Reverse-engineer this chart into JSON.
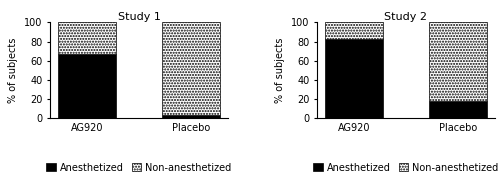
{
  "study1": {
    "title": "Study 1",
    "categories": [
      "AG920",
      "Placebo"
    ],
    "anesthetized": [
      67,
      3
    ],
    "non_anesthetized": [
      33,
      97
    ]
  },
  "study2": {
    "title": "Study 2",
    "categories": [
      "AG920",
      "Placebo"
    ],
    "anesthetized": [
      83,
      17
    ],
    "non_anesthetized": [
      17,
      83
    ]
  },
  "ylabel": "% of subjects",
  "ylim": [
    0,
    100
  ],
  "yticks": [
    0,
    20,
    40,
    60,
    80,
    100
  ],
  "bar_width": 0.55,
  "color_anesthetized": "#000000",
  "legend_labels": [
    "Anesthetized",
    "Non-anesthetized"
  ],
  "fontsize_title": 8,
  "fontsize_labels": 7,
  "fontsize_ticks": 7,
  "fontsize_legend": 7
}
